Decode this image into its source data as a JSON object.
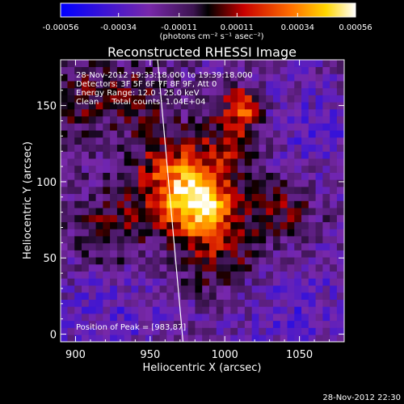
{
  "chart_data": {
    "type": "heatmap",
    "title": "Reconstructed RHESSI Image",
    "xlabel": "Heliocentric X (arcsec)",
    "ylabel": "Heliocentric Y (arcsec)",
    "xlim": [
      890,
      1080
    ],
    "ylim": [
      -5,
      180
    ],
    "x_ticks": [
      900,
      950,
      1000,
      1050
    ],
    "x_tick_labels": [
      "900",
      "950",
      "1000",
      "1050"
    ],
    "y_ticks": [
      0,
      50,
      100,
      150
    ],
    "y_tick_labels": [
      "0",
      "50",
      "100",
      "150"
    ],
    "colorbar": {
      "range": [
        -0.00056,
        0.00056
      ],
      "tick_values": [
        -0.00056,
        -0.00034,
        -0.00011,
        0.00011,
        0.00034,
        0.00056
      ],
      "tick_labels": [
        "-0.00056",
        "-0.00034",
        "-0.00011",
        "0.00011",
        "0.00034",
        "0.00056"
      ],
      "unit_label": "(photons cm⁻² s⁻¹ asec⁻²)"
    },
    "annotations": [
      "28-Nov-2012 19:33:18.000 to 19:39:18.000",
      "Detectors: 3F 5F 6F 7F 8F 9F, Att 0",
      "Energy Range: 12.0 - 25.0 keV",
      "Clean     Total counts: 1.04E+04"
    ],
    "peak_label": "Position of Peak = [983,87]",
    "peak": [
      983,
      87
    ],
    "intensity_sources": [
      {
        "x": 983,
        "y": 87,
        "amp": 0.00056,
        "sigma": 15
      },
      {
        "x": 965,
        "y": 103,
        "amp": 0.00036,
        "sigma": 20
      },
      {
        "x": 1012,
        "y": 150,
        "amp": 0.00042,
        "sigma": 8
      },
      {
        "x": 1005,
        "y": 128,
        "amp": 0.00026,
        "sigma": 14
      },
      {
        "x": 995,
        "y": 55,
        "amp": 0.00026,
        "sigma": 18
      },
      {
        "x": 1038,
        "y": 82,
        "amp": 0.00022,
        "sigma": 18
      },
      {
        "x": 925,
        "y": 68,
        "amp": 0.0002,
        "sigma": 18
      },
      {
        "x": 905,
        "y": 155,
        "amp": 0.00018,
        "sigma": 18
      },
      {
        "x": 945,
        "y": 155,
        "amp": 0.00018,
        "sigma": 14
      },
      {
        "x": 1060,
        "y": 130,
        "amp": -0.00012,
        "sigma": 28
      },
      {
        "x": 1050,
        "y": 15,
        "amp": -0.00013,
        "sigma": 30
      },
      {
        "x": 925,
        "y": 15,
        "amp": -0.00012,
        "sigma": 28
      }
    ],
    "limb_line": [
      [
        955,
        180
      ],
      [
        972,
        -5
      ]
    ]
  },
  "timestamp": "28-Nov-2012 22:30"
}
